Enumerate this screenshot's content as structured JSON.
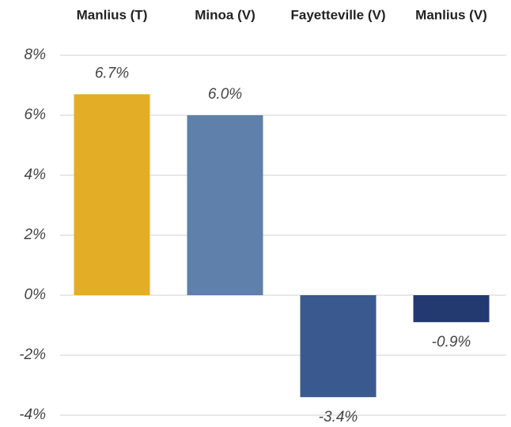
{
  "chart_data": {
    "type": "bar",
    "categories": [
      "Manlius (T)",
      "Minoa (V)",
      "Fayetteville (V)",
      "Manlius (V)"
    ],
    "values": [
      6.7,
      6.0,
      -3.4,
      -0.9
    ],
    "value_labels": [
      "6.7%",
      "6.0%",
      "-3.4%",
      "-0.9%"
    ],
    "colors": [
      "#e3ae26",
      "#5e80aa",
      "#3a5a8f",
      "#233a70"
    ],
    "ylim": [
      -4,
      8
    ],
    "yticks": [
      {
        "value": -4,
        "label": "-4%"
      },
      {
        "value": -2,
        "label": "-2%"
      },
      {
        "value": 0,
        "label": "0%"
      },
      {
        "value": 2,
        "label": "2%"
      },
      {
        "value": 4,
        "label": "4%"
      },
      {
        "value": 6,
        "label": "6%"
      },
      {
        "value": 8,
        "label": "8%"
      }
    ],
    "grid": true
  }
}
